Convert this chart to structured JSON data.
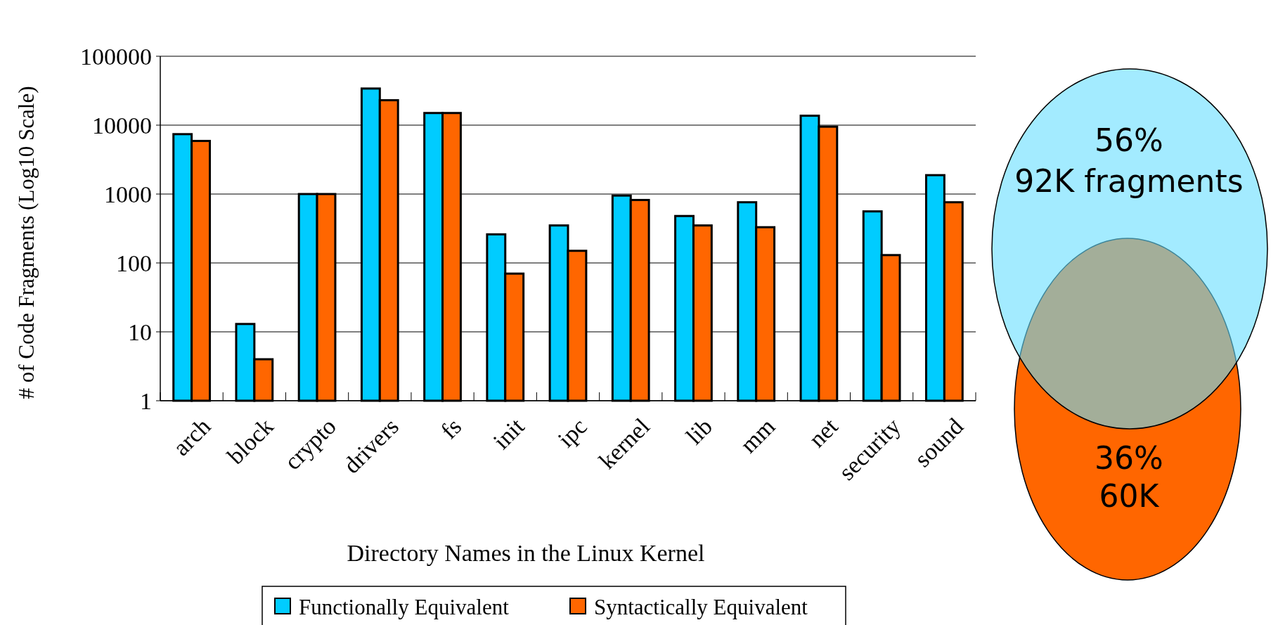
{
  "chart_data": [
    {
      "type": "bar",
      "xlabel": "Directory Names in the Linux Kernel",
      "ylabel": "# of Code Fragments (Log10 Scale)",
      "categories": [
        "arch",
        "block",
        "crypto",
        "drivers",
        "fs",
        "init",
        "ipc",
        "kernel",
        "lib",
        "mm",
        "net",
        "security",
        "sound"
      ],
      "series": [
        {
          "name": "Functionally Equivalent",
          "color": "#00ccff",
          "values": [
            7400,
            13,
            1000,
            34000,
            15000,
            260,
            350,
            950,
            480,
            760,
            13700,
            560,
            1880
          ]
        },
        {
          "name": "Syntactically Equivalent",
          "color": "#ff6600",
          "values": [
            5900,
            4,
            1000,
            23000,
            15000,
            70,
            150,
            820,
            350,
            330,
            9500,
            130,
            760
          ]
        }
      ],
      "log": true,
      "ylim": [
        1,
        100000
      ],
      "yticks": [
        1,
        10,
        100,
        1000,
        10000,
        100000
      ],
      "grid": "y",
      "legend": "bottom"
    },
    {
      "type": "other",
      "annotations": [
        "56%",
        "92K fragments",
        "36%",
        "60K"
      ]
    }
  ]
}
